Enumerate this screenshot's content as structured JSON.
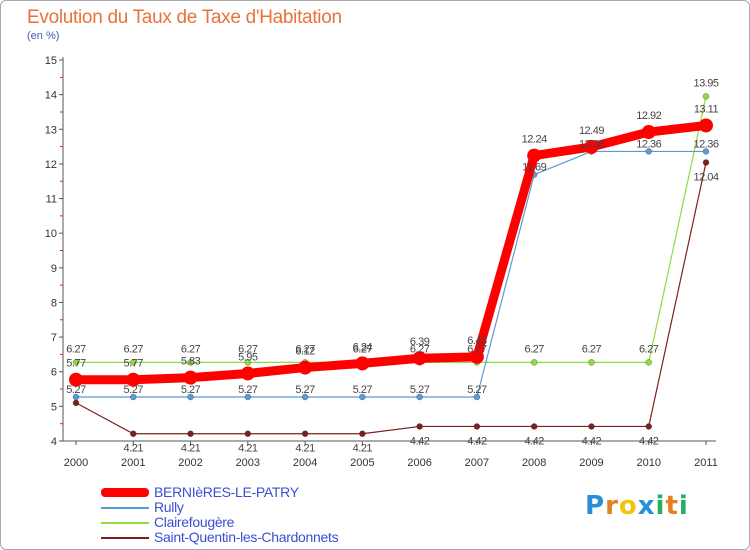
{
  "chart_data": {
    "type": "line",
    "title": "Evolution du Taux de Taxe d'Habitation",
    "ylabel": "(en %)",
    "xlabel": "",
    "ylim": [
      4,
      15
    ],
    "yticks": [
      4,
      5,
      6,
      7,
      8,
      9,
      10,
      11,
      12,
      13,
      14,
      15
    ],
    "categories": [
      "2000",
      "2001",
      "2002",
      "2003",
      "2004",
      "2005",
      "2006",
      "2007",
      "2008",
      "2009",
      "2010",
      "2011"
    ],
    "series": [
      {
        "name": "BERNIèRES-LE-PATRY",
        "color": "#ff0000",
        "values": [
          5.77,
          5.77,
          5.83,
          5.95,
          6.12,
          6.24,
          6.39,
          6.43,
          12.24,
          12.49,
          12.92,
          13.11
        ],
        "labels": [
          "5.77",
          "5.77",
          "5.83",
          "5.95",
          "6.12",
          "6.24",
          "6.39",
          "6.43",
          "12.24",
          "12.49",
          "12.92",
          "13.11"
        ]
      },
      {
        "name": "Rully",
        "color": "#5b9bd5",
        "values": [
          5.27,
          5.27,
          5.27,
          5.27,
          5.27,
          5.27,
          5.27,
          5.27,
          11.69,
          12.36,
          12.36,
          12.36
        ],
        "labels": [
          "5.27",
          "5.27",
          "5.27",
          "5.27",
          "5.27",
          "5.27",
          "5.27",
          "5.27",
          "11.69",
          "12.36",
          "12.36",
          "12.36"
        ]
      },
      {
        "name": "Clairefougère",
        "color": "#8fdc3c",
        "values": [
          6.27,
          6.27,
          6.27,
          6.27,
          6.27,
          6.27,
          6.27,
          6.27,
          6.27,
          6.27,
          6.27,
          13.95
        ],
        "labels": [
          "6.27",
          "6.27",
          "6.27",
          "6.27",
          "6.27",
          "6.27",
          "6.27",
          "6.27",
          "6.27",
          "6.27",
          "6.27",
          "13.95"
        ]
      },
      {
        "name": "Saint-Quentin-les-Chardonnets",
        "color": "#7a2020",
        "values": [
          5.1,
          4.21,
          4.21,
          4.21,
          4.21,
          4.21,
          4.42,
          4.42,
          4.42,
          4.42,
          4.42,
          12.04
        ],
        "labels": [
          "",
          "4.21",
          "4.21",
          "4.21",
          "4.21",
          "4.21",
          "4.42",
          "4.42",
          "4.42",
          "4.42",
          "4.42",
          "12.04"
        ]
      }
    ]
  },
  "logo": {
    "letters": [
      "P",
      "r",
      "o",
      "x",
      "i",
      "t",
      "i"
    ],
    "colors": [
      "#2a8fd6",
      "#e67e22",
      "#f1c40f",
      "#2a8fd6",
      "#27ae60",
      "#e67e22",
      "#27ae60"
    ]
  }
}
